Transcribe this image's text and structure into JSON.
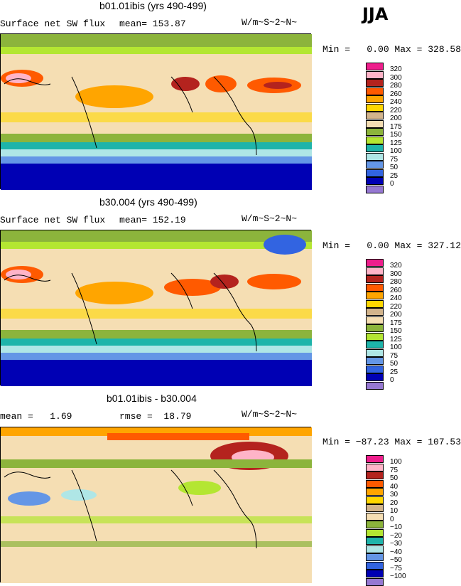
{
  "season": "JJA",
  "panels": [
    {
      "title": "b01.01ibis (yrs 490-499)",
      "left_label": "Surface net SW flux",
      "mean_text": "mean= 153.87",
      "units": "W/m~S~2~N~",
      "minmax": "Min =   0.00 Max = 328.58",
      "levels": [
        "320",
        "300",
        "280",
        "260",
        "240",
        "220",
        "200",
        "175",
        "150",
        "125",
        "100",
        "75",
        "50",
        "25",
        "0"
      ]
    },
    {
      "title": "b30.004 (yrs 490-499)",
      "left_label": "Surface net SW flux",
      "mean_text": "mean= 152.19",
      "units": "W/m~S~2~N~",
      "minmax": "Min =   0.00 Max = 327.12",
      "levels": [
        "320",
        "300",
        "280",
        "260",
        "240",
        "220",
        "200",
        "175",
        "150",
        "125",
        "100",
        "75",
        "50",
        "25",
        "0"
      ]
    },
    {
      "title": "b01.01ibis - b30.004",
      "left_label": "mean =   1.69",
      "mean_text": "rmse =  18.79",
      "units": "W/m~S~2~N~",
      "minmax": "Min = −87.23 Max = 107.53",
      "levels": [
        "100",
        "75",
        "50",
        "40",
        "30",
        "20",
        "10",
        "0",
        "−10",
        "−20",
        "−30",
        "−40",
        "−50",
        "−75",
        "−100"
      ]
    }
  ],
  "colors": {
    "abs": [
      "#ee1e8c",
      "#ffb4c8",
      "#b4231e",
      "#ff5a00",
      "#ffa500",
      "#ffd700",
      "#d2b48c",
      "#f5deb3",
      "#8cb43c",
      "#b4e632",
      "#1eb4aa",
      "#afe6e6",
      "#6496e6",
      "#3264e1",
      "#0000b4",
      "#9678d2"
    ],
    "diff": [
      "#ee1e8c",
      "#ffb4c8",
      "#b4231e",
      "#ff5a00",
      "#ffa500",
      "#ffd700",
      "#d2b48c",
      "#f5deb3",
      "#8cb43c",
      "#b4e632",
      "#1eb4aa",
      "#afe6e6",
      "#6496e6",
      "#3264e1",
      "#0000b4",
      "#9678d2"
    ]
  }
}
